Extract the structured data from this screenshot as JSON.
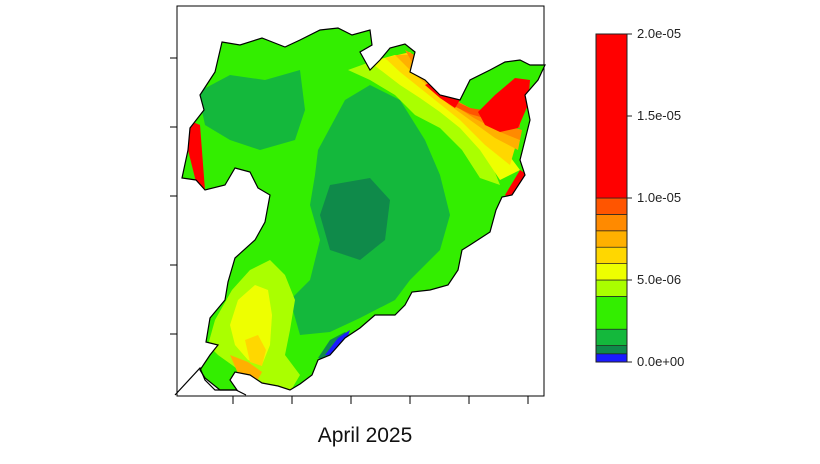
{
  "chart_data": {
    "type": "heatmap",
    "title": "April 2025",
    "colorbar": {
      "min": 0,
      "max": 2e-05,
      "tick_labels": [
        "2.0e-05",
        "1.5e-05",
        "1.0e-05",
        "5.0e-06",
        "0.0e+00"
      ],
      "tick_values": [
        2e-05,
        1.5e-05,
        1e-05,
        5e-06,
        0
      ],
      "levels": [
        {
          "from": 0.0,
          "to": 5e-07,
          "color": "#1a1aff"
        },
        {
          "from": 5e-07,
          "to": 1e-06,
          "color": "#0f8a4a"
        },
        {
          "from": 1e-06,
          "to": 2e-06,
          "color": "#14b83c"
        },
        {
          "from": 2e-06,
          "to": 4e-06,
          "color": "#33ee00"
        },
        {
          "from": 4e-06,
          "to": 5e-06,
          "color": "#aaff00"
        },
        {
          "from": 5e-06,
          "to": 6e-06,
          "color": "#eeff00"
        },
        {
          "from": 6e-06,
          "to": 7e-06,
          "color": "#ffd700"
        },
        {
          "from": 7e-06,
          "to": 8e-06,
          "color": "#ffb000"
        },
        {
          "from": 8e-06,
          "to": 9e-06,
          "color": "#ff8a00"
        },
        {
          "from": 9e-06,
          "to": 1e-05,
          "color": "#ff5500"
        },
        {
          "from": 1e-05,
          "to": 2e-05,
          "color": "#ff0000"
        }
      ]
    },
    "axes": {
      "x_ticks": 6,
      "y_ticks": 5,
      "tick_labels_shown": false
    }
  }
}
